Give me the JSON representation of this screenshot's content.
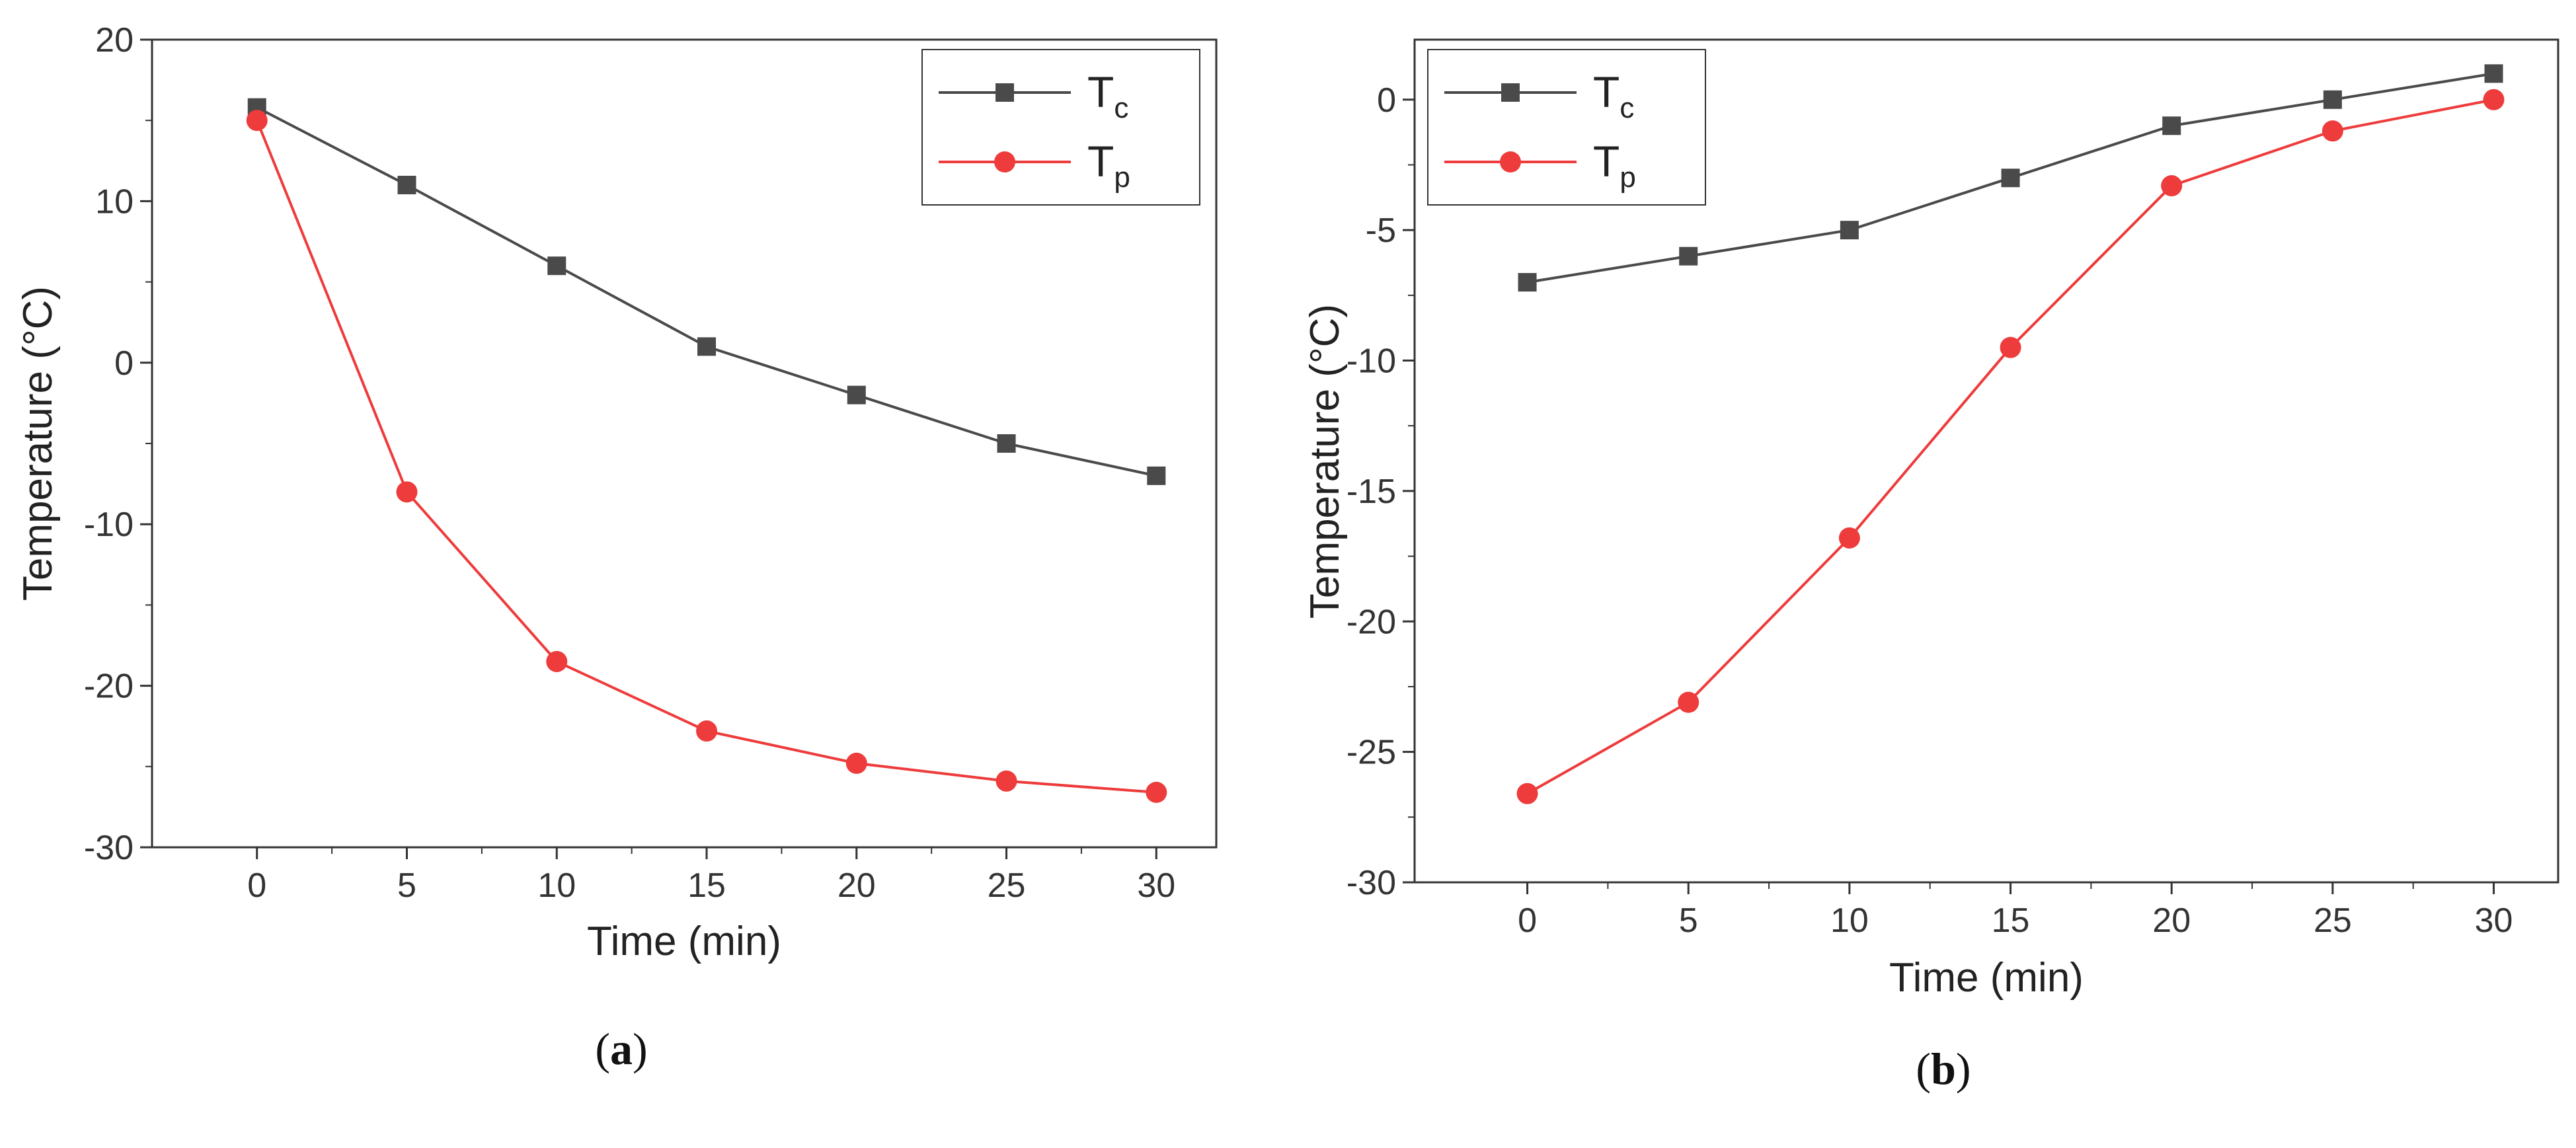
{
  "colors": {
    "tc": "#4a4a4a",
    "tp": "#ee3b3b"
  },
  "chart_data": [
    {
      "type": "line",
      "caption_letter": "a",
      "xlabel": "Time (min)",
      "ylabel": "Temperature (°C)",
      "xlim": [
        -3.5,
        32
      ],
      "ylim": [
        -30,
        20
      ],
      "xticks": [
        0,
        5,
        10,
        15,
        20,
        25,
        30
      ],
      "yticks": [
        20,
        10,
        0,
        -10,
        -20,
        -30
      ],
      "legend_position": "top-right",
      "series": [
        {
          "name": "T",
          "sub": "c",
          "marker": "square",
          "color": "#4a4a4a",
          "x": [
            0,
            5,
            10,
            15,
            20,
            25,
            30
          ],
          "y": [
            15.8,
            11,
            6,
            1,
            -2,
            -5,
            -7
          ]
        },
        {
          "name": "T",
          "sub": "p",
          "marker": "circle",
          "color": "#ee3b3b",
          "x": [
            0,
            5,
            10,
            15,
            20,
            25,
            30
          ],
          "y": [
            15,
            -8,
            -18.5,
            -22.8,
            -24.8,
            -25.9,
            -26.6
          ]
        }
      ]
    },
    {
      "type": "line",
      "caption_letter": "b",
      "xlabel": "Time (min)",
      "ylabel": "Temperature (°C)",
      "xlim": [
        -3.5,
        32
      ],
      "ylim": [
        -30,
        2.3
      ],
      "xticks": [
        0,
        5,
        10,
        15,
        20,
        25,
        30
      ],
      "yticks": [
        0,
        -5,
        -10,
        -15,
        -20,
        -25,
        -30
      ],
      "legend_position": "top-left",
      "series": [
        {
          "name": "T",
          "sub": "c",
          "marker": "square",
          "color": "#4a4a4a",
          "x": [
            0,
            5,
            10,
            15,
            20,
            25,
            30
          ],
          "y": [
            -7,
            -6,
            -5,
            -3,
            -1,
            0,
            1
          ]
        },
        {
          "name": "T",
          "sub": "p",
          "marker": "circle",
          "color": "#ee3b3b",
          "x": [
            0,
            5,
            10,
            15,
            20,
            25,
            30
          ],
          "y": [
            -26.6,
            -23.1,
            -16.8,
            -9.5,
            -3.3,
            -1.2,
            0
          ]
        }
      ]
    }
  ]
}
